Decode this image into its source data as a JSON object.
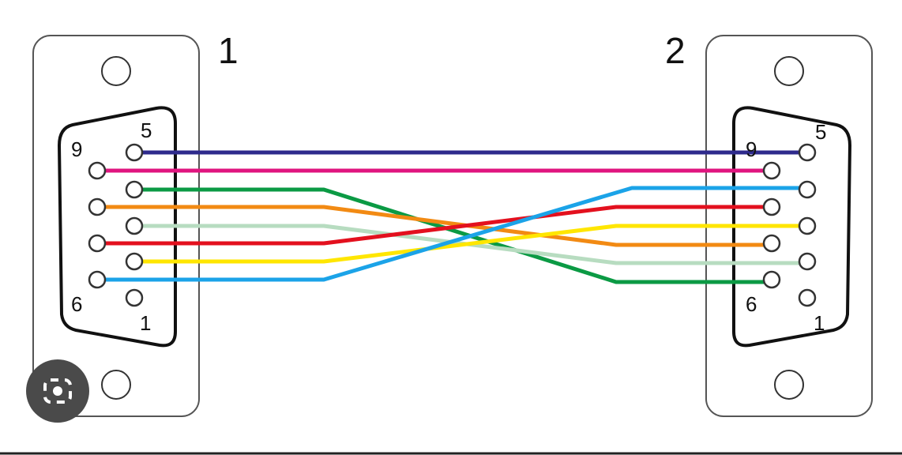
{
  "connectors": [
    {
      "label": "1",
      "pin_labels": [
        "5",
        "9",
        "6",
        "1"
      ]
    },
    {
      "label": "2",
      "pin_labels": [
        "9",
        "5",
        "6",
        "1"
      ]
    }
  ]
}
